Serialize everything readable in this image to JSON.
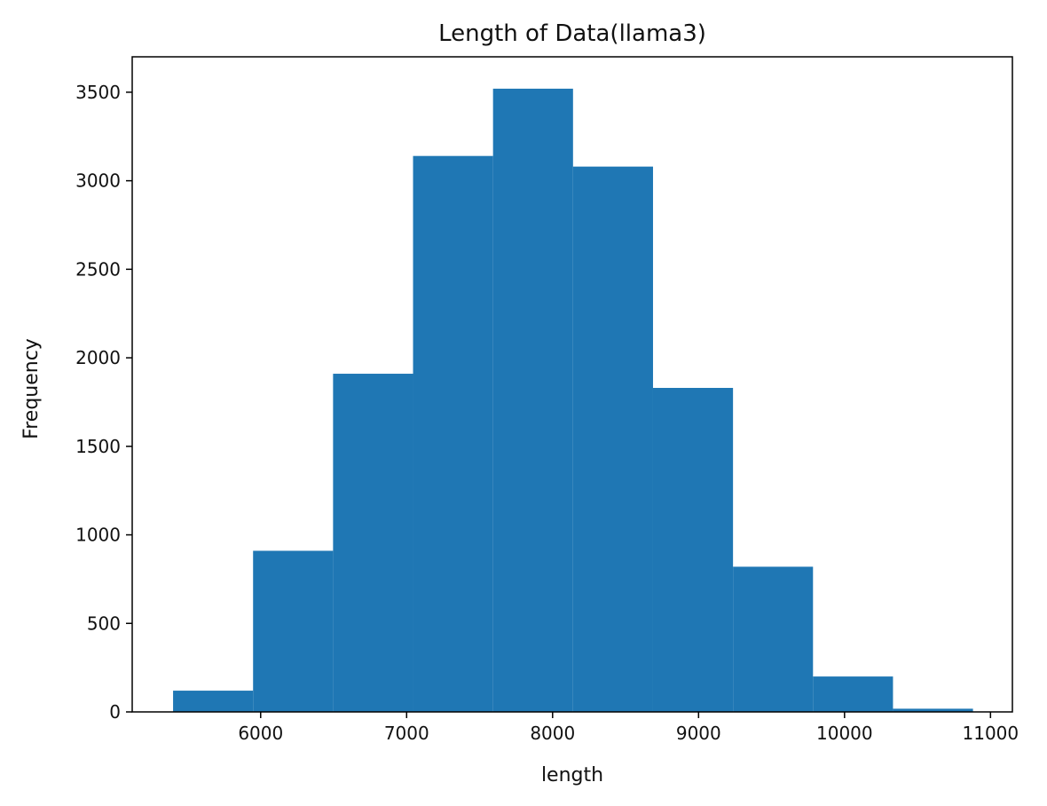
{
  "chart_data": {
    "type": "bar",
    "subtype": "histogram",
    "title": "Length of Data(llama3)",
    "xlabel": "length",
    "ylabel": "Frequency",
    "bar_color": "#1f77b4",
    "xlim": [
      5120,
      11150
    ],
    "ylim": [
      0,
      3700
    ],
    "xticks": [
      6000,
      7000,
      8000,
      9000,
      10000,
      11000
    ],
    "yticks": [
      0,
      500,
      1000,
      1500,
      2000,
      2500,
      3000,
      3500
    ],
    "bin_edges": [
      5400,
      5948,
      6496,
      7044,
      7592,
      8140,
      8688,
      9236,
      9784,
      10332,
      10880
    ],
    "values": [
      120,
      910,
      1910,
      3140,
      3520,
      3080,
      1830,
      820,
      200,
      18
    ],
    "grid": false,
    "legend": "none"
  }
}
